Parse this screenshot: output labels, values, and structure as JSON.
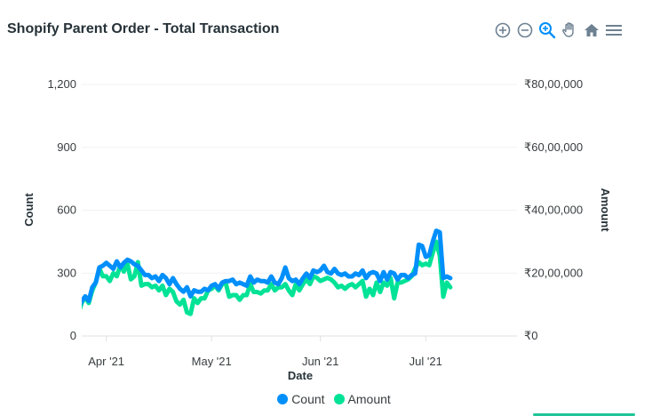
{
  "title": "Shopify Parent Order - Total Transaction",
  "toolbar": {
    "icons": [
      "zoom-in-icon",
      "zoom-out-icon",
      "zoom-select-icon",
      "pan-hand-icon",
      "reset-home-icon",
      "menu-icon"
    ],
    "active_color": "#008ffb",
    "inactive_color": "#6e8192"
  },
  "chart_data": {
    "type": "line",
    "title": "Shopify Parent Order - Total Transaction",
    "xlabel": "Date",
    "y_left": {
      "label": "Count",
      "ylim": [
        0,
        1200
      ],
      "ticks": [
        0,
        300,
        600,
        900,
        1200
      ],
      "tick_labels": [
        "0",
        "300",
        "600",
        "900",
        "1,200"
      ]
    },
    "y_right": {
      "label": "Amount",
      "ylim": [
        0,
        8000000
      ],
      "ticks": [
        0,
        2000000,
        4000000,
        6000000,
        8000000
      ],
      "tick_labels": [
        "₹0",
        "₹20,00,000",
        "₹40,00,000",
        "₹60,00,000",
        "₹80,00,000"
      ]
    },
    "x_range": [
      "2021-03-25",
      "2021-07-27"
    ],
    "x_ticks": [
      {
        "date": "2021-04-01",
        "label": "Apr '21"
      },
      {
        "date": "2021-05-01",
        "label": "May '21"
      },
      {
        "date": "2021-06-01",
        "label": "Jun '21"
      },
      {
        "date": "2021-07-01",
        "label": "Jul '21"
      }
    ],
    "grid": true,
    "legend_position": "bottom-center",
    "series": [
      {
        "name": "Count",
        "axis": "left",
        "color": "#008ffb",
        "points": [
          [
            "2021-03-22",
            124
          ],
          [
            "2021-03-23",
            116
          ],
          [
            "2021-03-24",
            131
          ],
          [
            "2021-03-25",
            167
          ],
          [
            "2021-03-26",
            189
          ],
          [
            "2021-03-27",
            167
          ],
          [
            "2021-03-28",
            233
          ],
          [
            "2021-03-29",
            255
          ],
          [
            "2021-03-30",
            327
          ],
          [
            "2021-03-31",
            335
          ],
          [
            "2021-04-01",
            349
          ],
          [
            "2021-04-02",
            335
          ],
          [
            "2021-04-03",
            320
          ],
          [
            "2021-04-04",
            356
          ],
          [
            "2021-04-05",
            327
          ],
          [
            "2021-04-06",
            349
          ],
          [
            "2021-04-07",
            364
          ],
          [
            "2021-04-08",
            356
          ],
          [
            "2021-04-09",
            342
          ],
          [
            "2021-04-10",
            335
          ],
          [
            "2021-04-11",
            313
          ],
          [
            "2021-04-12",
            291
          ],
          [
            "2021-04-13",
            291
          ],
          [
            "2021-04-14",
            276
          ],
          [
            "2021-04-15",
            284
          ],
          [
            "2021-04-16",
            262
          ],
          [
            "2021-04-17",
            291
          ],
          [
            "2021-04-18",
            276
          ],
          [
            "2021-04-19",
            247
          ],
          [
            "2021-04-20",
            276
          ],
          [
            "2021-04-21",
            247
          ],
          [
            "2021-04-22",
            225
          ],
          [
            "2021-04-23",
            211
          ],
          [
            "2021-04-24",
            233
          ],
          [
            "2021-04-25",
            189
          ],
          [
            "2021-04-26",
            218
          ],
          [
            "2021-04-27",
            211
          ],
          [
            "2021-04-28",
            211
          ],
          [
            "2021-04-29",
            225
          ],
          [
            "2021-04-30",
            218
          ],
          [
            "2021-05-01",
            240
          ],
          [
            "2021-05-02",
            247
          ],
          [
            "2021-05-03",
            225
          ],
          [
            "2021-05-04",
            255
          ],
          [
            "2021-05-05",
            262
          ],
          [
            "2021-05-06",
            262
          ],
          [
            "2021-05-07",
            269
          ],
          [
            "2021-05-08",
            247
          ],
          [
            "2021-05-09",
            255
          ],
          [
            "2021-05-10",
            247
          ],
          [
            "2021-05-11",
            240
          ],
          [
            "2021-05-12",
            284
          ],
          [
            "2021-05-13",
            255
          ],
          [
            "2021-05-14",
            269
          ],
          [
            "2021-05-15",
            262
          ],
          [
            "2021-05-16",
            262
          ],
          [
            "2021-05-17",
            255
          ],
          [
            "2021-05-18",
            284
          ],
          [
            "2021-05-19",
            255
          ],
          [
            "2021-05-20",
            247
          ],
          [
            "2021-05-21",
            276
          ],
          [
            "2021-05-22",
            327
          ],
          [
            "2021-05-23",
            276
          ],
          [
            "2021-05-24",
            262
          ],
          [
            "2021-05-25",
            269
          ],
          [
            "2021-05-26",
            247
          ],
          [
            "2021-05-27",
            276
          ],
          [
            "2021-05-28",
            298
          ],
          [
            "2021-05-29",
            276
          ],
          [
            "2021-05-30",
            313
          ],
          [
            "2021-05-31",
            305
          ],
          [
            "2021-06-01",
            313
          ],
          [
            "2021-06-02",
            335
          ],
          [
            "2021-06-03",
            305
          ],
          [
            "2021-06-04",
            298
          ],
          [
            "2021-06-05",
            320
          ],
          [
            "2021-06-06",
            298
          ],
          [
            "2021-06-07",
            291
          ],
          [
            "2021-06-08",
            298
          ],
          [
            "2021-06-09",
            284
          ],
          [
            "2021-06-10",
            284
          ],
          [
            "2021-06-11",
            298
          ],
          [
            "2021-06-12",
            291
          ],
          [
            "2021-06-13",
            313
          ],
          [
            "2021-06-14",
            276
          ],
          [
            "2021-06-15",
            298
          ],
          [
            "2021-06-16",
            305
          ],
          [
            "2021-06-17",
            298
          ],
          [
            "2021-06-18",
            262
          ],
          [
            "2021-06-19",
            305
          ],
          [
            "2021-06-20",
            269
          ],
          [
            "2021-06-21",
            305
          ],
          [
            "2021-06-22",
            298
          ],
          [
            "2021-06-23",
            269
          ],
          [
            "2021-06-24",
            291
          ],
          [
            "2021-06-25",
            291
          ],
          [
            "2021-06-26",
            276
          ],
          [
            "2021-06-27",
            291
          ],
          [
            "2021-06-28",
            298
          ],
          [
            "2021-06-29",
            436
          ],
          [
            "2021-06-30",
            429
          ],
          [
            "2021-07-01",
            378
          ],
          [
            "2021-07-02",
            385
          ],
          [
            "2021-07-03",
            451
          ],
          [
            "2021-07-04",
            502
          ],
          [
            "2021-07-05",
            495
          ],
          [
            "2021-07-06",
            276
          ],
          [
            "2021-07-07",
            284
          ],
          [
            "2021-07-08",
            276
          ]
        ]
      },
      {
        "name": "Amount",
        "axis": "right",
        "color": "#00e396",
        "points": [
          [
            "2021-03-22",
            500000
          ],
          [
            "2021-03-23",
            500000
          ],
          [
            "2021-03-24",
            700000
          ],
          [
            "2021-03-25",
            1050000
          ],
          [
            "2021-03-26",
            1250000
          ],
          [
            "2021-03-27",
            1050000
          ],
          [
            "2021-03-28",
            1450000
          ],
          [
            "2021-03-29",
            1700000
          ],
          [
            "2021-03-30",
            2150000
          ],
          [
            "2021-03-31",
            1900000
          ],
          [
            "2021-04-01",
            1900000
          ],
          [
            "2021-04-02",
            1750000
          ],
          [
            "2021-04-03",
            2000000
          ],
          [
            "2021-04-04",
            1900000
          ],
          [
            "2021-04-05",
            2250000
          ],
          [
            "2021-04-06",
            2050000
          ],
          [
            "2021-04-07",
            2300000
          ],
          [
            "2021-04-08",
            1800000
          ],
          [
            "2021-04-09",
            1900000
          ],
          [
            "2021-04-10",
            2350000
          ],
          [
            "2021-04-11",
            1600000
          ],
          [
            "2021-04-12",
            1650000
          ],
          [
            "2021-04-13",
            1650000
          ],
          [
            "2021-04-14",
            1550000
          ],
          [
            "2021-04-15",
            1600000
          ],
          [
            "2021-04-16",
            1450000
          ],
          [
            "2021-04-17",
            1600000
          ],
          [
            "2021-04-18",
            1300000
          ],
          [
            "2021-04-19",
            1500000
          ],
          [
            "2021-04-20",
            1400000
          ],
          [
            "2021-04-21",
            1100000
          ],
          [
            "2021-04-22",
            1000000
          ],
          [
            "2021-04-23",
            1150000
          ],
          [
            "2021-04-24",
            750000
          ],
          [
            "2021-04-25",
            700000
          ],
          [
            "2021-04-26",
            1200000
          ],
          [
            "2021-04-27",
            1050000
          ],
          [
            "2021-04-28",
            1200000
          ],
          [
            "2021-04-29",
            1200000
          ],
          [
            "2021-04-30",
            1450000
          ],
          [
            "2021-05-01",
            1500000
          ],
          [
            "2021-05-02",
            1600000
          ],
          [
            "2021-05-03",
            1450000
          ],
          [
            "2021-05-04",
            1650000
          ],
          [
            "2021-05-05",
            1700000
          ],
          [
            "2021-05-06",
            1250000
          ],
          [
            "2021-05-07",
            1300000
          ],
          [
            "2021-05-08",
            1300000
          ],
          [
            "2021-05-09",
            1150000
          ],
          [
            "2021-05-10",
            1300000
          ],
          [
            "2021-05-11",
            1300000
          ],
          [
            "2021-05-12",
            1650000
          ],
          [
            "2021-05-13",
            1400000
          ],
          [
            "2021-05-14",
            1400000
          ],
          [
            "2021-05-15",
            1350000
          ],
          [
            "2021-05-16",
            1450000
          ],
          [
            "2021-05-17",
            1450000
          ],
          [
            "2021-05-18",
            1650000
          ],
          [
            "2021-05-19",
            1450000
          ],
          [
            "2021-05-20",
            1550000
          ],
          [
            "2021-05-21",
            1550000
          ],
          [
            "2021-05-22",
            1650000
          ],
          [
            "2021-05-23",
            1450000
          ],
          [
            "2021-05-24",
            1300000
          ],
          [
            "2021-05-25",
            1650000
          ],
          [
            "2021-05-26",
            1450000
          ],
          [
            "2021-05-27",
            1650000
          ],
          [
            "2021-05-28",
            1800000
          ],
          [
            "2021-05-29",
            1650000
          ],
          [
            "2021-05-30",
            1900000
          ],
          [
            "2021-05-31",
            1850000
          ],
          [
            "2021-06-01",
            1750000
          ],
          [
            "2021-06-02",
            1800000
          ],
          [
            "2021-06-03",
            1850000
          ],
          [
            "2021-06-04",
            1800000
          ],
          [
            "2021-06-05",
            1700000
          ],
          [
            "2021-06-06",
            1550000
          ],
          [
            "2021-06-07",
            1600000
          ],
          [
            "2021-06-08",
            1500000
          ],
          [
            "2021-06-09",
            1600000
          ],
          [
            "2021-06-10",
            1650000
          ],
          [
            "2021-06-11",
            1550000
          ],
          [
            "2021-06-12",
            1650000
          ],
          [
            "2021-06-13",
            1750000
          ],
          [
            "2021-06-14",
            1250000
          ],
          [
            "2021-06-15",
            1500000
          ],
          [
            "2021-06-16",
            1300000
          ],
          [
            "2021-06-17",
            1700000
          ],
          [
            "2021-06-18",
            1400000
          ],
          [
            "2021-06-19",
            1700000
          ],
          [
            "2021-06-20",
            1600000
          ],
          [
            "2021-06-21",
            1850000
          ],
          [
            "2021-06-22",
            1200000
          ],
          [
            "2021-06-23",
            1700000
          ],
          [
            "2021-06-24",
            1700000
          ],
          [
            "2021-06-25",
            1750000
          ],
          [
            "2021-06-26",
            1800000
          ],
          [
            "2021-06-27",
            1900000
          ],
          [
            "2021-06-28",
            2150000
          ],
          [
            "2021-06-29",
            2350000
          ],
          [
            "2021-06-30",
            2250000
          ],
          [
            "2021-07-01",
            2300000
          ],
          [
            "2021-07-02",
            2250000
          ],
          [
            "2021-07-03",
            2650000
          ],
          [
            "2021-07-04",
            3000000
          ],
          [
            "2021-07-05",
            2550000
          ],
          [
            "2021-07-06",
            1250000
          ],
          [
            "2021-07-07",
            1700000
          ],
          [
            "2021-07-08",
            1550000
          ]
        ]
      }
    ]
  }
}
